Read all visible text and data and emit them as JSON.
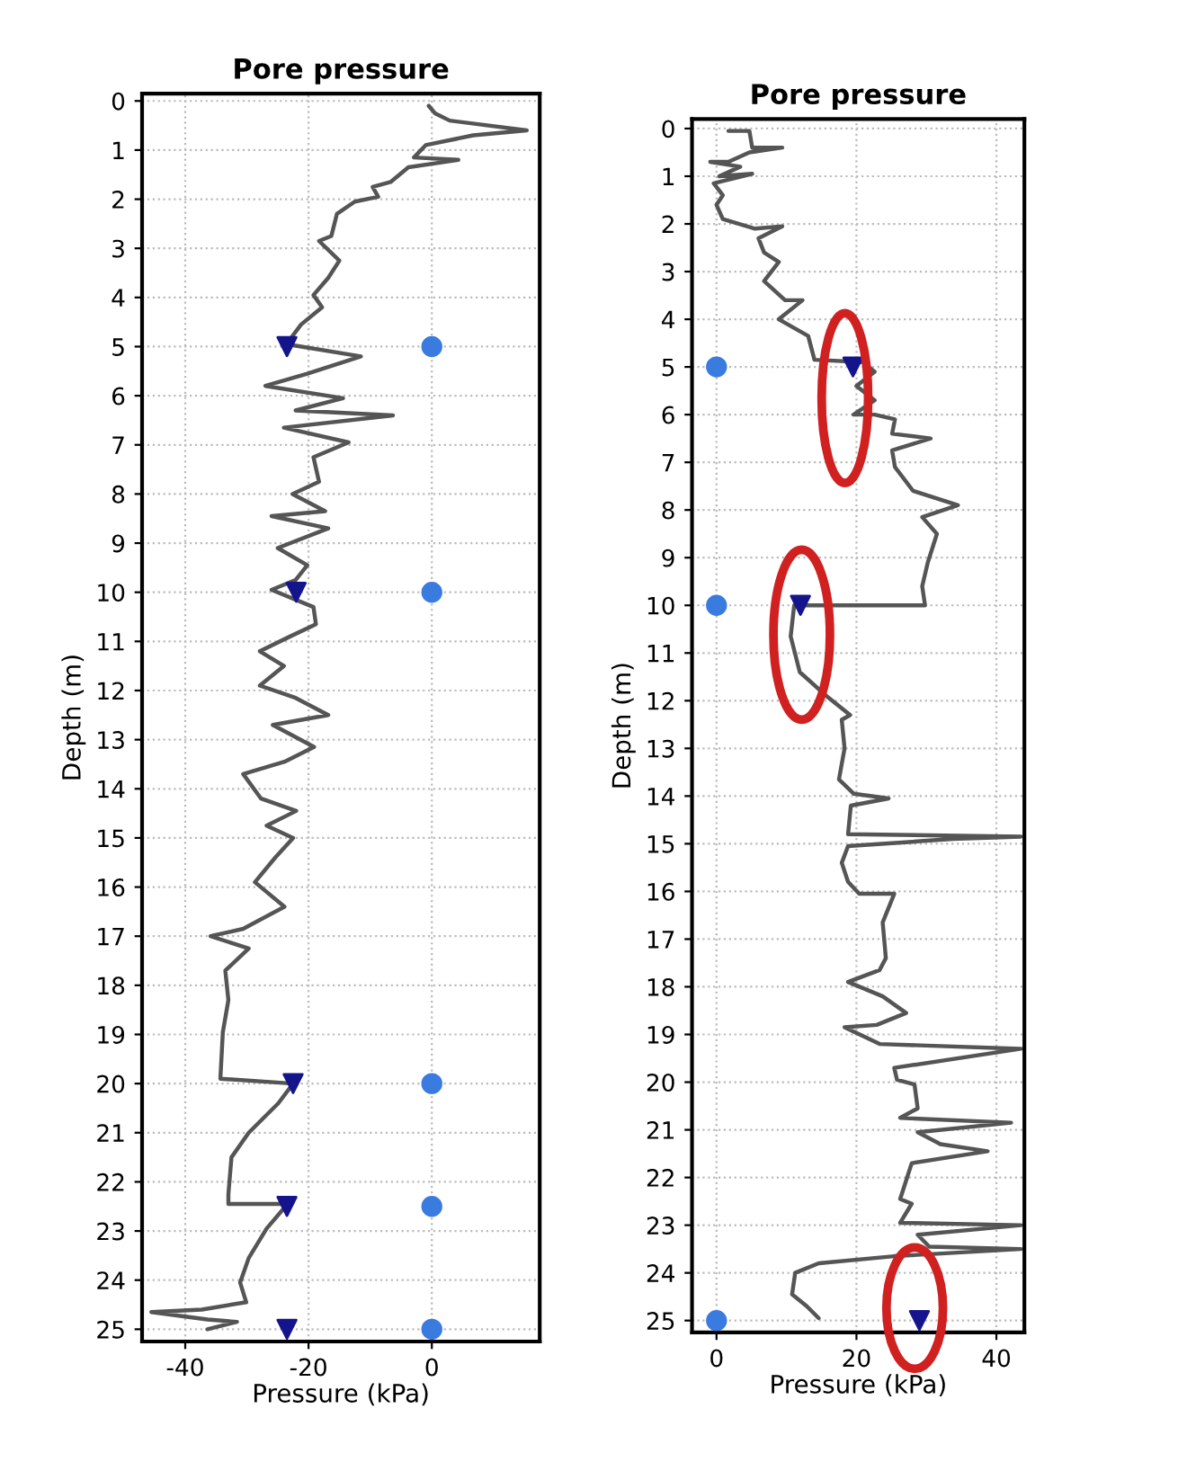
{
  "chart_data": [
    {
      "type": "line",
      "title": "Pore pressure",
      "xlabel": "Pressure (kPa)",
      "ylabel": "Depth (m)",
      "xlim": [
        -47,
        17.5
      ],
      "ylim": [
        25.25,
        -0.15
      ],
      "xticks": [
        -40,
        -20,
        0
      ],
      "yticks": [
        0,
        1,
        2,
        3,
        4,
        5,
        6,
        7,
        8,
        9,
        10,
        11,
        12,
        13,
        14,
        15,
        16,
        17,
        18,
        19,
        20,
        21,
        22,
        23,
        24,
        25
      ],
      "grid": true,
      "legend": false,
      "series": [
        {
          "color": "#555555",
          "marker": "none",
          "line_style": "solid",
          "x": [
            -0.5,
            0.5,
            2.9,
            15.4,
            6.7,
            -1,
            -2.9,
            4.3,
            -3.8,
            -6.7,
            -9.6,
            -8.7,
            -12.5,
            -15.4,
            -16.3,
            -18.3,
            -15,
            -16.8,
            -19.2,
            -17.8,
            -21.2,
            -23.6,
            -11.5,
            -20.2,
            -27,
            -14.4,
            -22.1,
            -6.3,
            -24,
            -13.5,
            -19.2,
            -18.3,
            -22.6,
            -17.3,
            -26,
            -16.8,
            -25,
            -20.2,
            -22.1,
            -26,
            -19.2,
            -18.8,
            -23,
            -27.9,
            -24,
            -27.9,
            -22.1,
            -16.8,
            -25.8,
            -19.1,
            -23.9,
            -30.6,
            -27.7,
            -22,
            -26.8,
            -22.5,
            -25.4,
            -28.7,
            -23.9,
            -30.6,
            -35.9,
            -29.7,
            -33.5,
            -33,
            -33.9,
            -34.3,
            -22.5,
            -24.9,
            -29.7,
            -32.5,
            -33,
            -33,
            -23.4,
            -26.8,
            -29.7,
            -31.1,
            -30.1,
            -37.3,
            -45.5,
            -36.4,
            -31.6,
            -36.4
          ],
          "values": [
            0.1,
            0.25,
            0.4,
            0.6,
            0.7,
            0.9,
            1.15,
            1.2,
            1.35,
            1.65,
            1.75,
            1.95,
            2.05,
            2.3,
            2.75,
            2.85,
            3.25,
            3.6,
            3.95,
            4.2,
            4.55,
            4.95,
            5.2,
            5.55,
            5.8,
            6.05,
            6.3,
            6.4,
            6.65,
            6.95,
            7.25,
            7.75,
            8,
            8.35,
            8.45,
            8.7,
            9.1,
            9.45,
            9.75,
            9.95,
            10.3,
            10.65,
            10.9,
            11.2,
            11.5,
            11.9,
            12.15,
            12.5,
            12.7,
            13.15,
            13.45,
            13.7,
            14.2,
            14.45,
            14.75,
            15,
            15.4,
            15.9,
            16.4,
            16.85,
            17,
            17.25,
            17.7,
            18.3,
            18.95,
            19.9,
            20,
            20.4,
            21,
            21.5,
            22.25,
            22.45,
            22.45,
            22.95,
            23.55,
            24.05,
            24.45,
            24.6,
            24.65,
            24.8,
            24.85,
            25
          ]
        },
        {
          "type": "scatter",
          "color": "#14148c",
          "marker": "triangle",
          "x": [
            -23.5,
            -22,
            -22.5,
            -23.5,
            -23.5
          ],
          "values": [
            5,
            10,
            20,
            22.5,
            25
          ]
        },
        {
          "type": "scatter",
          "color": "#3a7be0",
          "marker": "circle",
          "x": [
            0,
            0,
            0,
            0,
            0
          ],
          "values": [
            5,
            10,
            20,
            22.5,
            25
          ]
        }
      ]
    },
    {
      "type": "line",
      "title": "Pore pressure",
      "xlabel": "Pressure (kPa)",
      "ylabel": "Depth (m)",
      "xlim": [
        -3.5,
        44
      ],
      "ylim": [
        25.25,
        -0.2
      ],
      "xticks": [
        0,
        20,
        40
      ],
      "yticks": [
        0,
        1,
        2,
        3,
        4,
        5,
        6,
        7,
        8,
        9,
        10,
        11,
        12,
        13,
        14,
        15,
        16,
        17,
        18,
        19,
        20,
        21,
        22,
        23,
        24,
        25
      ],
      "grid": true,
      "legend": false,
      "series": [
        {
          "color": "#555555",
          "marker": "none",
          "line_style": "solid",
          "x": [
            1.7,
            4.7,
            5.1,
            9.4,
            4.7,
            1.7,
            -0.9,
            3.4,
            0.4,
            5.1,
            -0.4,
            0.9,
            0,
            0.9,
            5.5,
            9.4,
            6,
            6.8,
            8.9,
            6.8,
            9.8,
            12.3,
            8.9,
            13.1,
            14,
            20.9,
            22.6,
            20,
            22.6,
            19.6,
            22.6,
            25.5,
            25.1,
            30.6,
            25.1,
            25.5,
            28.1,
            34.5,
            29.4,
            31.5,
            30.2,
            29.4,
            29.8,
            11.1,
            10.6,
            11.9,
            15.7,
            19.1,
            17.9,
            18.3,
            17.5,
            19.6,
            24.6,
            19.2,
            18.8,
            43.5,
            33.8,
            18.8,
            17.9,
            18.8,
            20.4,
            25.4,
            23.75,
            24.2,
            23.3,
            18.8,
            23.75,
            27.1,
            22.9,
            18.3,
            23.3,
            43.5,
            25.4,
            25.8,
            28.3,
            28.75,
            26.25,
            42.1,
            28.75,
            32,
            38.75,
            27.9,
            26.25,
            27.9,
            26.25,
            43.5,
            28.75,
            30.4,
            43.5,
            25.4,
            14.6,
            11.25,
            10.8,
            12.9,
            14.6
          ],
          "values": [
            0.05,
            0.05,
            0.4,
            0.4,
            0.5,
            0.7,
            0.7,
            0.8,
            1,
            0.95,
            1.15,
            1.4,
            1.6,
            1.9,
            2.1,
            2.05,
            2.3,
            2.6,
            2.8,
            3.2,
            3.6,
            3.6,
            4,
            4.35,
            4.85,
            4.9,
            5.1,
            5.4,
            5.7,
            6,
            6,
            6.1,
            6.4,
            6.5,
            6.75,
            7.1,
            7.6,
            7.9,
            8.15,
            8.5,
            9.1,
            9.6,
            10,
            10,
            10.65,
            11.4,
            11.9,
            12.3,
            12.4,
            13,
            13.65,
            13.95,
            14.05,
            14.2,
            14.8,
            14.85,
            14.9,
            15.05,
            15.4,
            15.8,
            16.05,
            16.05,
            16.65,
            17.4,
            17.65,
            17.9,
            18.2,
            18.55,
            18.8,
            18.85,
            19.2,
            19.3,
            19.7,
            19.95,
            20.05,
            20.55,
            20.75,
            20.85,
            21.05,
            21.3,
            21.45,
            21.7,
            22.45,
            22.55,
            22.95,
            23,
            23.2,
            23.45,
            23.5,
            23.65,
            23.8,
            24,
            24.45,
            24.7,
            24.95
          ]
        },
        {
          "type": "scatter",
          "color": "#14148c",
          "marker": "triangle",
          "x": [
            19.5,
            12,
            29
          ],
          "values": [
            5,
            10,
            25
          ]
        },
        {
          "type": "scatter",
          "color": "#3a7be0",
          "marker": "circle",
          "x": [
            0,
            0,
            0
          ],
          "values": [
            5,
            10,
            25
          ]
        }
      ]
    }
  ]
}
